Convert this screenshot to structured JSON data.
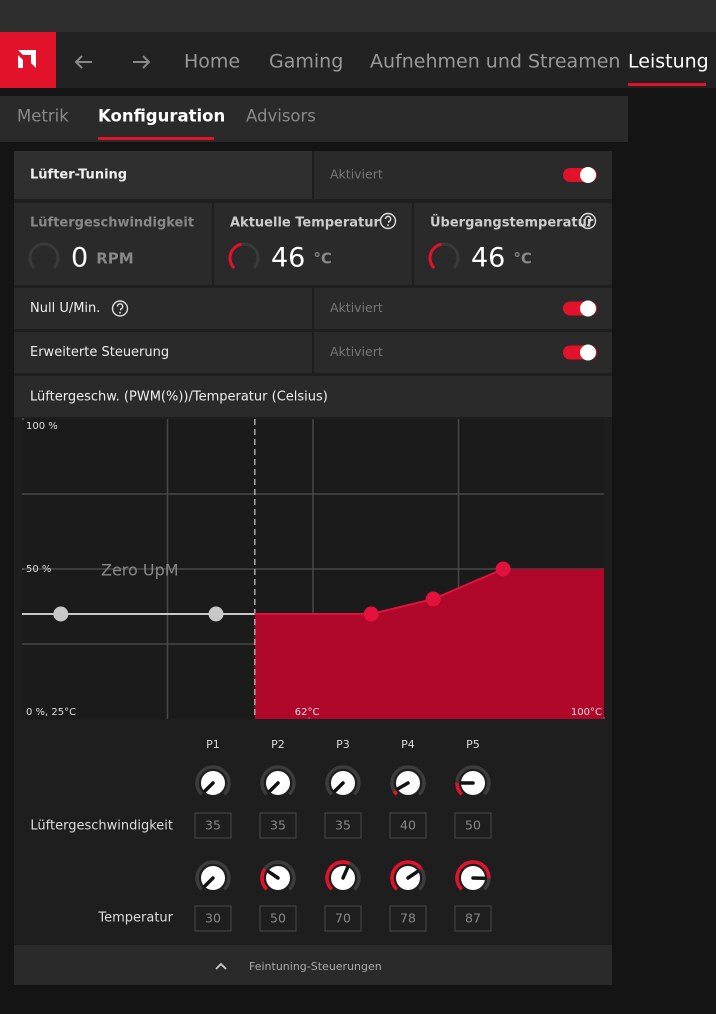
{
  "nav": {
    "items": [
      "Home",
      "Gaming",
      "Aufnehmen und Streamen",
      "Leistung"
    ],
    "active": 3
  },
  "tabs": {
    "items": [
      "Metrik",
      "Konfiguration",
      "Advisors"
    ],
    "active": 1
  },
  "fan_tuning": {
    "label": "Lüfter-Tuning",
    "status": "Aktiviert",
    "enabled": true
  },
  "gauges": [
    {
      "label": "Lüftergeschwindigkeit",
      "value": 0,
      "unit": "RPM",
      "range": [
        0,
        3000
      ],
      "help": false
    },
    {
      "label": "Aktuelle Temperatur",
      "value": 46,
      "unit": "°C",
      "range": [
        0,
        100
      ],
      "help": true
    },
    {
      "label": "Übergangstemperatur",
      "value": 46,
      "unit": "°C",
      "range": [
        0,
        100
      ],
      "help": true
    }
  ],
  "zero_rpm": {
    "label": "Null U/Min.",
    "status": "Aktiviert",
    "enabled": true,
    "help": true
  },
  "advanced_control": {
    "label": "Erweiterte Steuerung",
    "status": "Aktiviert",
    "enabled": true
  },
  "chart_data": {
    "type": "fan-curve",
    "title": "Lüftergeschw. (PWM(%))/Temperatur (Celsius)",
    "xlim": [
      25,
      100
    ],
    "ylim": [
      0,
      100
    ],
    "yticks": [
      {
        "value": 100,
        "label": "100 %"
      },
      {
        "value": 50,
        "label": "50 %"
      }
    ],
    "xticks": [
      {
        "value": 62,
        "label": "62°C"
      },
      {
        "value": 100,
        "label": "100°C"
      }
    ],
    "origin_label": "0 %, 25°C",
    "xgrid": [
      43.75,
      62.5,
      81.25
    ],
    "ygrid": [
      25,
      50,
      75
    ],
    "zero_rpm_label": "Zero UpM",
    "zero_rpm_limit": 55,
    "color": "#b0082b",
    "point_color": "#e3123c",
    "inactive_color": "#c8c8c8"
  },
  "controls": {
    "points": [
      "P1",
      "P2",
      "P3",
      "P4",
      "P5"
    ],
    "fan_speed_label": "Lüftergeschwindigkeit",
    "fan_speed": [
      35,
      35,
      35,
      40,
      50
    ],
    "fan_speed_knob_range": [
      35,
      125
    ],
    "temperature_label": "Temperatur",
    "temperature": [
      30,
      50,
      70,
      78,
      87
    ],
    "temperature_knob_range": [
      30,
      98
    ]
  },
  "footer": {
    "label": "Feintuning-Steuerungen"
  }
}
